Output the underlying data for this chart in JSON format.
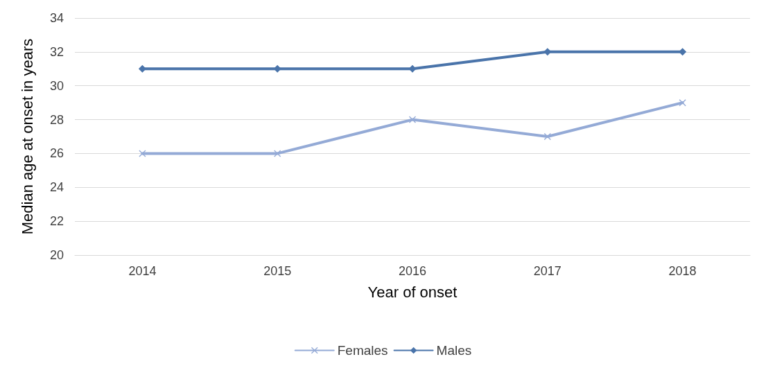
{
  "chart_data": {
    "type": "line",
    "xlabel": "Year of onset",
    "ylabel": "Median age at onset in years",
    "categories": [
      "2014",
      "2015",
      "2016",
      "2017",
      "2018"
    ],
    "series": [
      {
        "name": "Females",
        "color": "#94aad6",
        "marker": "cross",
        "values": [
          26,
          26,
          28,
          27,
          29
        ]
      },
      {
        "name": "Males",
        "color": "#4a74aa",
        "marker": "diamond",
        "values": [
          31,
          31,
          31,
          32,
          32
        ]
      }
    ],
    "ylim": [
      20,
      34
    ],
    "yticks": [
      20,
      22,
      24,
      26,
      28,
      30,
      32,
      34
    ],
    "grid": "y",
    "legend": "bottom",
    "line_style": "solid"
  }
}
